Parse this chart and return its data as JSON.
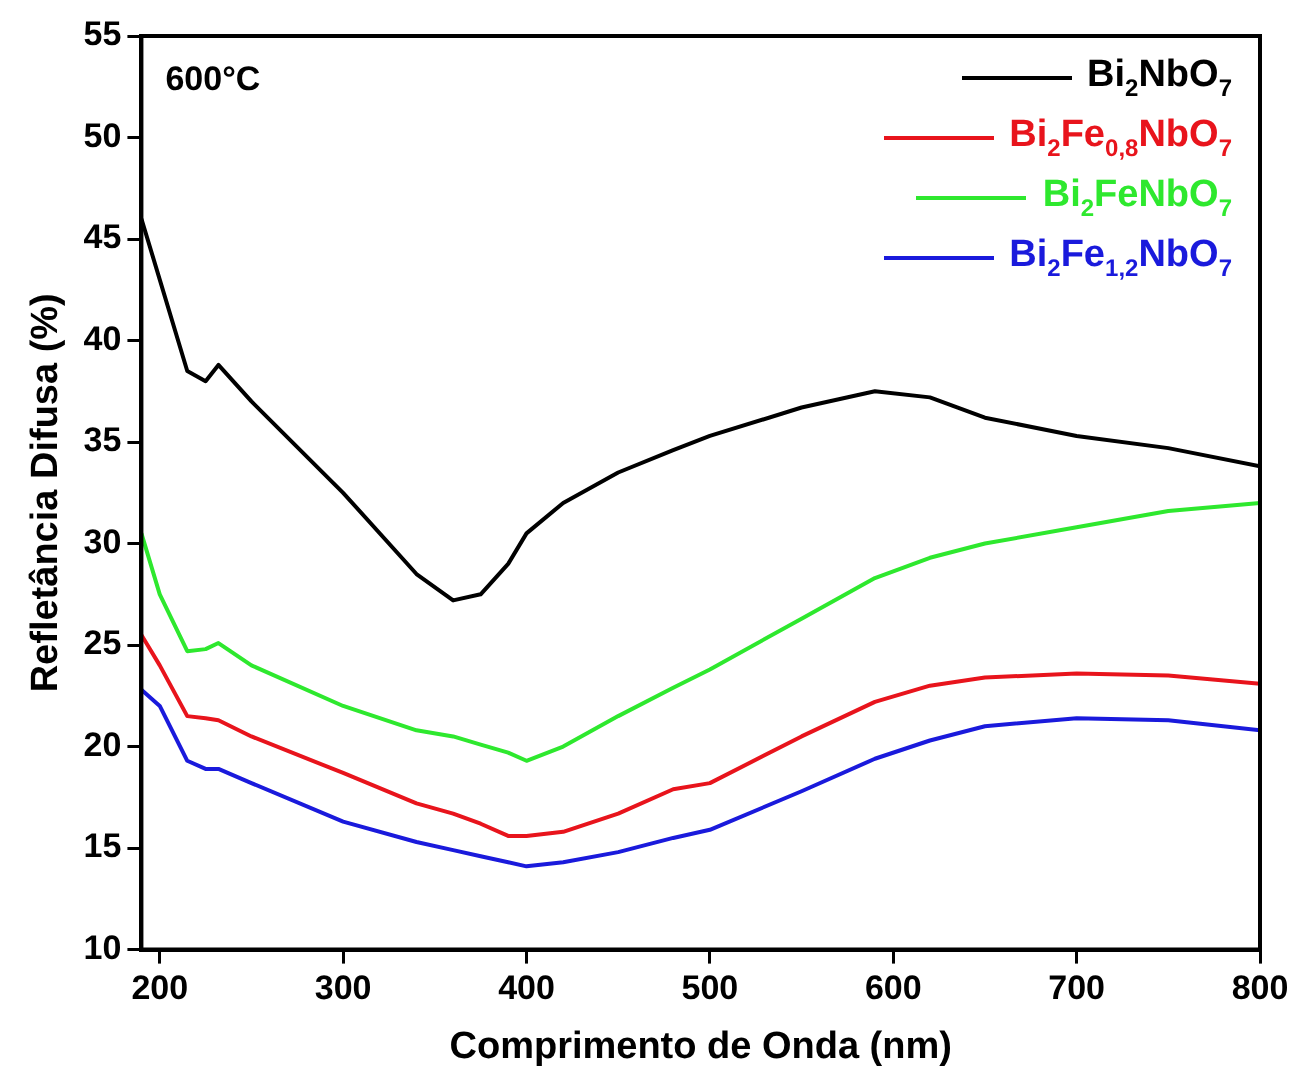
{
  "chart_data": {
    "type": "line",
    "xlabel": "Comprimento de Onda (nm)",
    "ylabel": "Refletância Difusa (%)",
    "annotations": [
      "600°C"
    ],
    "xlim": [
      190,
      800
    ],
    "xticks": [
      200,
      300,
      400,
      500,
      600,
      700,
      800
    ],
    "ylim": [
      10,
      55
    ],
    "yticks": [
      10,
      15,
      20,
      25,
      30,
      35,
      40,
      45,
      50,
      55
    ],
    "grid": false,
    "legend": "top right",
    "marker": "none",
    "line_style": "solid",
    "x": [
      190,
      200,
      215,
      225,
      232,
      250,
      300,
      340,
      360,
      375,
      390,
      400,
      420,
      450,
      480,
      500,
      550,
      590,
      620,
      650,
      700,
      750,
      800
    ],
    "series": [
      {
        "name": "Bi$_{2}$NbO$_{7}$",
        "color": "#000000",
        "values": [
          46,
          43,
          38.5,
          38,
          38.8,
          37,
          32.5,
          28.5,
          27.2,
          27.5,
          29,
          30.5,
          32,
          33.5,
          34.6,
          35.3,
          36.7,
          37.5,
          37.2,
          36.2,
          35.3,
          34.7,
          33.8
        ]
      },
      {
        "name": "Bi$_{2}$Fe$_{0,8}$NbO$_{7}$",
        "color": "#e8141c",
        "values": [
          25.5,
          24,
          21.5,
          21.4,
          21.3,
          20.5,
          18.7,
          17.2,
          16.7,
          16.2,
          15.6,
          15.6,
          15.8,
          16.7,
          17.9,
          18.2,
          20.5,
          22.2,
          23,
          23.4,
          23.6,
          23.5,
          23.1
        ]
      },
      {
        "name": "Bi$_{2}$FeNbO$_{7}$",
        "color": "#2ee82e",
        "values": [
          30.5,
          27.5,
          24.7,
          24.8,
          25.1,
          24,
          22,
          20.8,
          20.5,
          20.1,
          19.7,
          19.3,
          20,
          21.5,
          22.9,
          23.8,
          26.3,
          28.3,
          29.3,
          30,
          30.8,
          31.6,
          32
        ]
      },
      {
        "name": "Bi$_{2}$Fe$_{1,2}$NbO$_{7}$",
        "color": "#1a1adc",
        "values": [
          22.8,
          22,
          19.3,
          18.9,
          18.9,
          18.2,
          16.3,
          15.3,
          14.9,
          14.6,
          14.3,
          14.1,
          14.3,
          14.8,
          15.5,
          15.9,
          17.8,
          19.4,
          20.3,
          21,
          21.4,
          21.3,
          20.8
        ]
      }
    ]
  }
}
